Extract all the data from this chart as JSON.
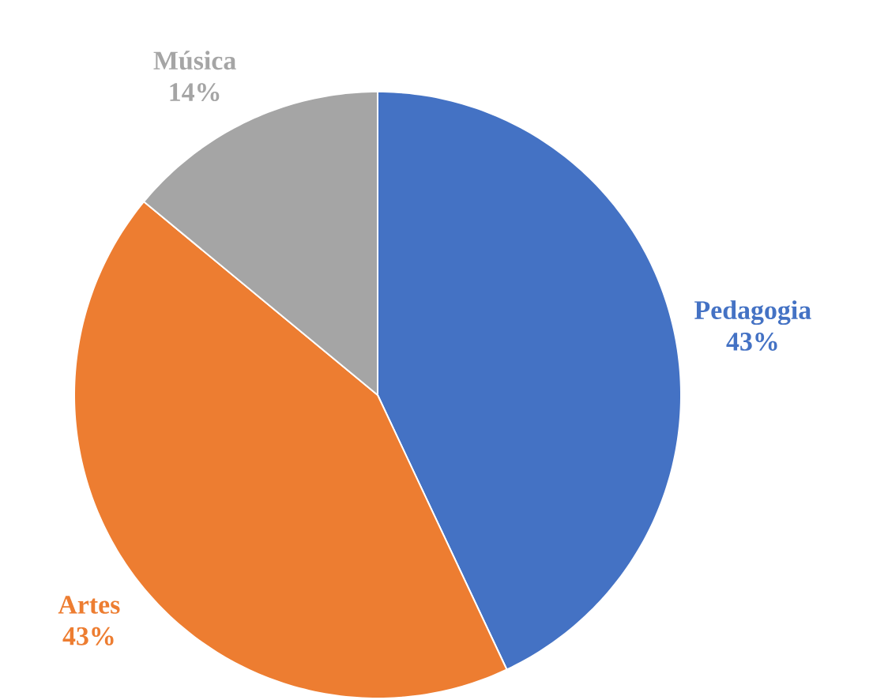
{
  "chart_data": {
    "type": "pie",
    "categories": [
      "Pedagogia",
      "Artes",
      "Música"
    ],
    "values": [
      43,
      43,
      14
    ],
    "colors": [
      "#4472c4",
      "#ed7d31",
      "#a5a5a5"
    ],
    "value_labels": [
      "43%",
      "43%",
      "14%"
    ]
  }
}
